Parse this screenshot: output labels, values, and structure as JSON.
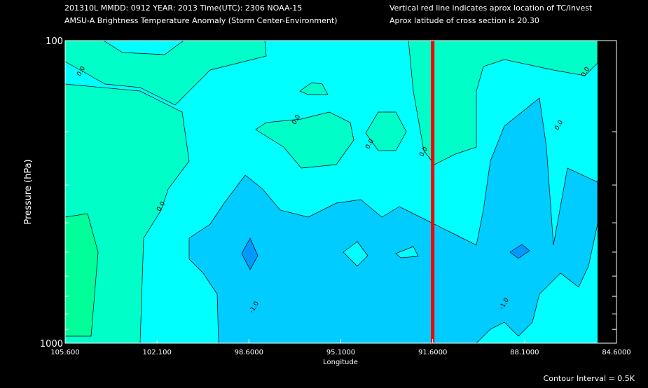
{
  "chart_data": {
    "type": "contour",
    "header_left": [
      "201310L  MMDD: 0912 YEAR: 2013 Time(UTC): 2306 NOAA-15",
      "AMSU-A Brightness Temperature Anomaly (Storm Center-Environment)"
    ],
    "header_right": [
      "Vertical red line indicates aprox location of TC/Invest",
      "Aprox latitude of cross section is 20.30"
    ],
    "xlabel": "Longitude",
    "ylabel": "Pressure (hPa)",
    "footer": "Contour Interval = 0.5K",
    "xlim": [
      105.6,
      84.6
    ],
    "xticks": [
      {
        "value": 105.6,
        "label": "105.600"
      },
      {
        "value": 102.1,
        "label": "102.100"
      },
      {
        "value": 98.6,
        "label": "98.6000"
      },
      {
        "value": 95.1,
        "label": "95.1000"
      },
      {
        "value": 91.6,
        "label": "91.6000"
      },
      {
        "value": 88.1,
        "label": "88.1000"
      },
      {
        "value": 84.6,
        "label": "84.6000"
      }
    ],
    "ylim": [
      100,
      1000
    ],
    "y_log": true,
    "y_inverted": true,
    "yticks": [
      100,
      1000
    ],
    "yminorticks": [
      200,
      300,
      400,
      500,
      600,
      700,
      800,
      900
    ],
    "tc_longitude": 91.6,
    "tc_color": "#ff0000",
    "levels": [
      {
        "value": -1.5,
        "color": "#0099ff"
      },
      {
        "value": -1.0,
        "color": "#00ccff"
      },
      {
        "value": -0.5,
        "color": "#00ffff"
      },
      {
        "value": 0,
        "color": "#00ffc8"
      },
      {
        "value": 0.5,
        "color": "#00ff99"
      }
    ],
    "contour_labels": [
      "0.0",
      "0.0",
      "0.0",
      "0.0",
      "0.0",
      "0.0",
      "0.0",
      "-1.0",
      "-1.0"
    ]
  }
}
